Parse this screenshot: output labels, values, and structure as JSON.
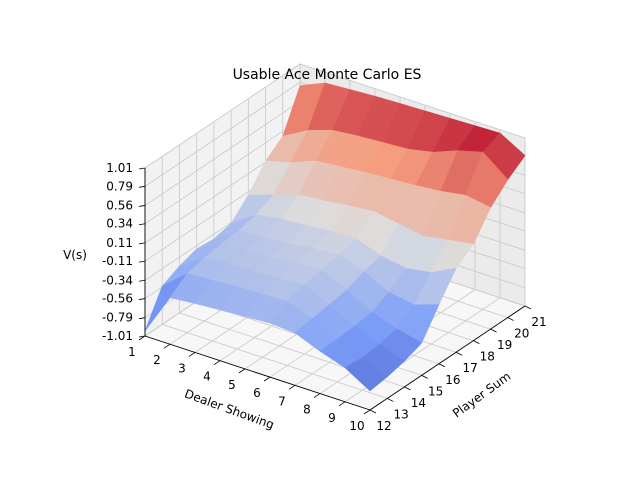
{
  "chart_data": {
    "type": "surface3d",
    "title": "Usable Ace Monte Carlo ES",
    "xlabel": "Dealer Showing",
    "ylabel": "Player Sum",
    "zlabel": "V(s)",
    "x_ticks": [
      "1",
      "2",
      "3",
      "4",
      "5",
      "6",
      "7",
      "8",
      "9",
      "10"
    ],
    "y_ticks": [
      "12",
      "13",
      "14",
      "15",
      "16",
      "17",
      "18",
      "19",
      "20",
      "21"
    ],
    "z_ticks": [
      "-1.01",
      "-0.79",
      "-0.56",
      "-0.34",
      "-0.11",
      "0.11",
      "0.34",
      "0.56",
      "0.79",
      "1.01"
    ],
    "xlim": [
      1,
      10
    ],
    "ylim": [
      12,
      21
    ],
    "zlim": [
      -1.01,
      1.01
    ],
    "colormap": "coolwarm",
    "x": [
      1,
      2,
      3,
      4,
      5,
      6,
      7,
      8,
      9,
      10
    ],
    "y": [
      12,
      13,
      14,
      15,
      16,
      17,
      18,
      19,
      20,
      21
    ],
    "z": [
      [
        -0.95,
        -0.55,
        -0.45,
        -0.38,
        -0.4,
        -0.35,
        -0.15,
        0.12,
        0.28,
        0.75
      ],
      [
        -0.45,
        -0.3,
        -0.25,
        -0.22,
        -0.2,
        -0.15,
        -0.05,
        0.2,
        0.45,
        0.88
      ],
      [
        -0.42,
        -0.28,
        -0.22,
        -0.2,
        -0.18,
        -0.1,
        0.05,
        0.32,
        0.55,
        0.9
      ],
      [
        -0.4,
        -0.26,
        -0.22,
        -0.18,
        -0.16,
        -0.08,
        0.08,
        0.35,
        0.58,
        0.92
      ],
      [
        -0.38,
        -0.25,
        -0.2,
        -0.15,
        -0.12,
        -0.05,
        0.12,
        0.38,
        0.6,
        0.93
      ],
      [
        -0.36,
        -0.24,
        -0.18,
        -0.14,
        -0.1,
        -0.04,
        0.15,
        0.4,
        0.62,
        0.94
      ],
      [
        -0.38,
        -0.35,
        -0.32,
        -0.28,
        -0.2,
        -0.15,
        0.1,
        0.42,
        0.68,
        0.95
      ],
      [
        -0.5,
        -0.5,
        -0.48,
        -0.45,
        -0.35,
        -0.2,
        0.05,
        0.45,
        0.8,
        0.96
      ],
      [
        -0.6,
        -0.62,
        -0.6,
        -0.55,
        -0.4,
        -0.15,
        0.1,
        0.5,
        0.88,
        0.97
      ],
      [
        -0.78,
        -0.75,
        -0.7,
        -0.62,
        -0.3,
        0.0,
        0.15,
        0.45,
        0.65,
        0.8
      ]
    ]
  }
}
